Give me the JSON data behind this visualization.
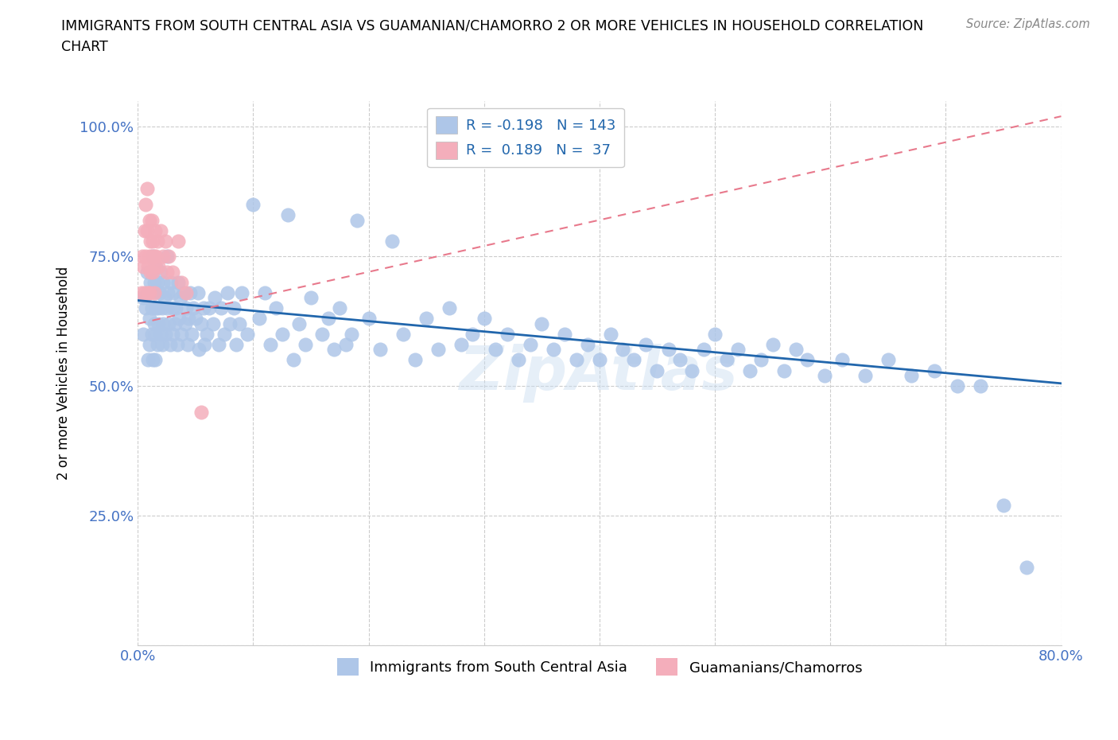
{
  "title": "IMMIGRANTS FROM SOUTH CENTRAL ASIA VS GUAMANIAN/CHAMORRO 2 OR MORE VEHICLES IN HOUSEHOLD CORRELATION\nCHART",
  "source": "Source: ZipAtlas.com",
  "ylabel": "2 or more Vehicles in Household",
  "xlim": [
    0.0,
    0.8
  ],
  "ylim": [
    0.0,
    1.05
  ],
  "xtick_positions": [
    0.0,
    0.1,
    0.2,
    0.3,
    0.4,
    0.5,
    0.6,
    0.7,
    0.8
  ],
  "xticklabels": [
    "0.0%",
    "",
    "",
    "",
    "",
    "",
    "",
    "",
    "80.0%"
  ],
  "ytick_positions": [
    0.0,
    0.25,
    0.5,
    0.75,
    1.0
  ],
  "yticklabels": [
    "",
    "25.0%",
    "50.0%",
    "75.0%",
    "100.0%"
  ],
  "blue_color": "#AEC6E8",
  "pink_color": "#F4AEBB",
  "blue_line_color": "#2166AC",
  "pink_line_color": "#E8798C",
  "legend_R1": "-0.198",
  "legend_N1": "143",
  "legend_R2": "0.189",
  "legend_N2": "37",
  "label1": "Immigrants from South Central Asia",
  "label2": "Guamanians/Chamorros",
  "watermark": "ZipAtlas",
  "blue_line_x0": 0.0,
  "blue_line_y0": 0.665,
  "blue_line_x1": 0.8,
  "blue_line_y1": 0.505,
  "pink_line_x0": 0.0,
  "pink_line_y0": 0.62,
  "pink_line_x1": 0.8,
  "pink_line_y1": 1.02,
  "blue_scatter_x": [
    0.005,
    0.005,
    0.007,
    0.008,
    0.009,
    0.01,
    0.01,
    0.01,
    0.011,
    0.012,
    0.012,
    0.013,
    0.013,
    0.014,
    0.014,
    0.015,
    0.015,
    0.015,
    0.016,
    0.016,
    0.017,
    0.017,
    0.018,
    0.018,
    0.019,
    0.02,
    0.02,
    0.021,
    0.021,
    0.022,
    0.022,
    0.023,
    0.024,
    0.025,
    0.025,
    0.026,
    0.027,
    0.028,
    0.029,
    0.03,
    0.03,
    0.031,
    0.032,
    0.033,
    0.034,
    0.035,
    0.036,
    0.037,
    0.038,
    0.04,
    0.041,
    0.042,
    0.043,
    0.044,
    0.045,
    0.047,
    0.048,
    0.05,
    0.052,
    0.053,
    0.055,
    0.057,
    0.058,
    0.06,
    0.062,
    0.065,
    0.067,
    0.07,
    0.072,
    0.075,
    0.078,
    0.08,
    0.083,
    0.085,
    0.088,
    0.09,
    0.095,
    0.1,
    0.105,
    0.11,
    0.115,
    0.12,
    0.125,
    0.13,
    0.135,
    0.14,
    0.145,
    0.15,
    0.16,
    0.165,
    0.17,
    0.175,
    0.18,
    0.185,
    0.19,
    0.2,
    0.21,
    0.22,
    0.23,
    0.24,
    0.25,
    0.26,
    0.27,
    0.28,
    0.29,
    0.3,
    0.31,
    0.32,
    0.33,
    0.34,
    0.35,
    0.36,
    0.37,
    0.38,
    0.39,
    0.4,
    0.41,
    0.42,
    0.43,
    0.44,
    0.45,
    0.46,
    0.47,
    0.48,
    0.49,
    0.5,
    0.51,
    0.52,
    0.53,
    0.54,
    0.55,
    0.56,
    0.57,
    0.58,
    0.595,
    0.61,
    0.63,
    0.65,
    0.67,
    0.69,
    0.71,
    0.73,
    0.75,
    0.77
  ],
  "blue_scatter_y": [
    0.67,
    0.6,
    0.65,
    0.72,
    0.55,
    0.68,
    0.63,
    0.58,
    0.7,
    0.65,
    0.6,
    0.75,
    0.55,
    0.7,
    0.62,
    0.68,
    0.6,
    0.55,
    0.73,
    0.65,
    0.7,
    0.58,
    0.65,
    0.62,
    0.68,
    0.72,
    0.6,
    0.65,
    0.58,
    0.7,
    0.62,
    0.67,
    0.6,
    0.75,
    0.65,
    0.68,
    0.62,
    0.58,
    0.7,
    0.65,
    0.6,
    0.68,
    0.62,
    0.65,
    0.58,
    0.7,
    0.63,
    0.67,
    0.6,
    0.68,
    0.62,
    0.65,
    0.58,
    0.63,
    0.68,
    0.6,
    0.65,
    0.63,
    0.68,
    0.57,
    0.62,
    0.65,
    0.58,
    0.6,
    0.65,
    0.62,
    0.67,
    0.58,
    0.65,
    0.6,
    0.68,
    0.62,
    0.65,
    0.58,
    0.62,
    0.68,
    0.6,
    0.85,
    0.63,
    0.68,
    0.58,
    0.65,
    0.6,
    0.83,
    0.55,
    0.62,
    0.58,
    0.67,
    0.6,
    0.63,
    0.57,
    0.65,
    0.58,
    0.6,
    0.82,
    0.63,
    0.57,
    0.78,
    0.6,
    0.55,
    0.63,
    0.57,
    0.65,
    0.58,
    0.6,
    0.63,
    0.57,
    0.6,
    0.55,
    0.58,
    0.62,
    0.57,
    0.6,
    0.55,
    0.58,
    0.55,
    0.6,
    0.57,
    0.55,
    0.58,
    0.53,
    0.57,
    0.55,
    0.53,
    0.57,
    0.6,
    0.55,
    0.57,
    0.53,
    0.55,
    0.58,
    0.53,
    0.57,
    0.55,
    0.52,
    0.55,
    0.52,
    0.55,
    0.52,
    0.53,
    0.5,
    0.5,
    0.27,
    0.15
  ],
  "pink_scatter_x": [
    0.003,
    0.004,
    0.005,
    0.006,
    0.006,
    0.007,
    0.007,
    0.008,
    0.008,
    0.009,
    0.009,
    0.01,
    0.01,
    0.01,
    0.011,
    0.011,
    0.012,
    0.012,
    0.013,
    0.013,
    0.014,
    0.014,
    0.015,
    0.015,
    0.016,
    0.017,
    0.018,
    0.02,
    0.022,
    0.024,
    0.025,
    0.027,
    0.03,
    0.035,
    0.038,
    0.042,
    0.055
  ],
  "pink_scatter_y": [
    0.68,
    0.75,
    0.73,
    0.8,
    0.68,
    0.85,
    0.75,
    0.88,
    0.8,
    0.73,
    0.68,
    0.82,
    0.75,
    0.68,
    0.78,
    0.72,
    0.82,
    0.75,
    0.78,
    0.72,
    0.75,
    0.68,
    0.8,
    0.73,
    0.75,
    0.78,
    0.73,
    0.8,
    0.75,
    0.78,
    0.72,
    0.75,
    0.72,
    0.78,
    0.7,
    0.68,
    0.45
  ]
}
